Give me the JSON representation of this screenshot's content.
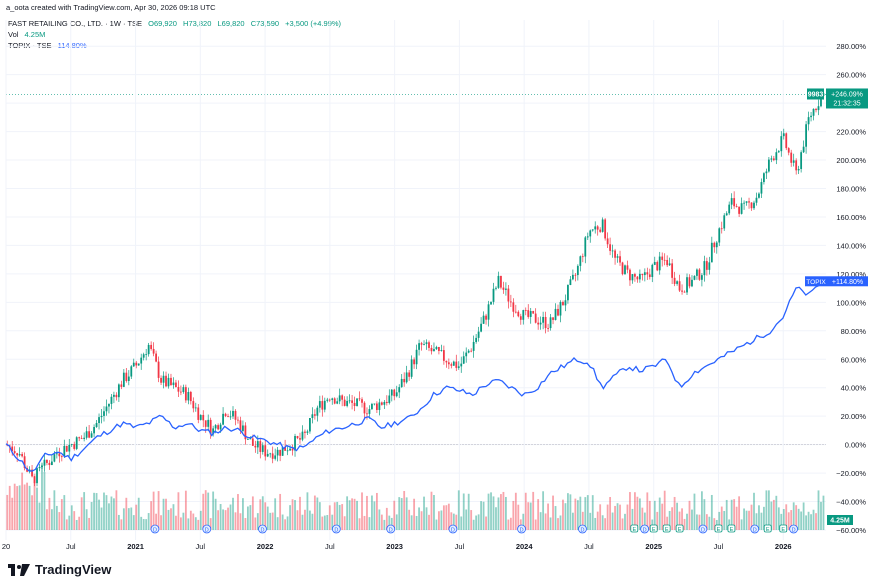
{
  "header": {
    "created_line": "a_oota created with TradingView.com, Apr 30, 2026 09:18 UTC"
  },
  "legend": {
    "symbol": "FAST RETAILING CO., LTD. · 1W · TSE",
    "open": "O69,920",
    "high": "H73,820",
    "low": "L69,820",
    "close": "C73,590",
    "change": "+3,500 (+4.99%)",
    "vol_label": "Vol",
    "vol_value": "4.25M",
    "compare_label": "TOPIX · TSE",
    "compare_value": "114.80%"
  },
  "badges": {
    "symbol_tag": "9983",
    "symbol_pct": "+246.09%",
    "countdown": "21:32:35",
    "topix_tag": "TOPIX",
    "topix_pct": "+114.80%",
    "vol_tag": "4.25M"
  },
  "colors": {
    "up": "#089981",
    "down": "#f23645",
    "compare": "#2962ff",
    "grid": "#f0f3fa"
  },
  "footer": {
    "brand": "TradingView",
    "logo_icon": "tradingview-logo-icon"
  },
  "chart_data": {
    "type": "line",
    "title": "",
    "xlabel": "",
    "ylabel": "",
    "y_unit": "%",
    "ylim": [
      -60,
      290
    ],
    "yticks": [
      "280.00%",
      "260.00%",
      "240.00%",
      "220.00%",
      "200.00%",
      "180.00%",
      "160.00%",
      "140.00%",
      "120.00%",
      "100.00%",
      "80.00%",
      "60.00%",
      "40.00%",
      "20.00%",
      "0.00%",
      "−20.00%",
      "−40.00%",
      "−60.00%"
    ],
    "ytick_values": [
      280,
      260,
      240,
      220,
      200,
      180,
      160,
      140,
      120,
      100,
      80,
      60,
      40,
      20,
      0,
      -20,
      -40,
      -60
    ],
    "xticks": [
      "20",
      "Jul",
      "2021",
      "Jul",
      "2022",
      "Jul",
      "2023",
      "Jul",
      "2024",
      "Jul",
      "2025",
      "Jul",
      "2026"
    ],
    "xtick_years": [
      2020.0,
      2020.5,
      2021.0,
      2021.5,
      2022.0,
      2022.5,
      2023.0,
      2023.5,
      2024.0,
      2024.5,
      2025.0,
      2025.5,
      2026.0
    ],
    "x_range": [
      2020.0,
      2026.33
    ],
    "grid": true,
    "series": [
      {
        "name": "FAST RETAILING CO., LTD.",
        "style": "candlestick",
        "x": [
          2020.0,
          2020.1,
          2020.2,
          2020.3,
          2020.4,
          2020.5,
          2020.6,
          2020.7,
          2020.8,
          2020.9,
          2021.0,
          2021.1,
          2021.2,
          2021.3,
          2021.4,
          2021.5,
          2021.6,
          2021.7,
          2021.8,
          2021.9,
          2022.0,
          2022.1,
          2022.2,
          2022.3,
          2022.4,
          2022.5,
          2022.6,
          2022.7,
          2022.8,
          2022.9,
          2023.0,
          2023.1,
          2023.2,
          2023.3,
          2023.4,
          2023.5,
          2023.6,
          2023.7,
          2023.8,
          2023.9,
          2024.0,
          2024.1,
          2024.2,
          2024.3,
          2024.4,
          2024.5,
          2024.6,
          2024.7,
          2024.8,
          2024.9,
          2025.0,
          2025.1,
          2025.2,
          2025.3,
          2025.4,
          2025.5,
          2025.6,
          2025.7,
          2025.8,
          2025.9,
          2026.0,
          2026.1,
          2026.2,
          2026.3
        ],
        "values": [
          0,
          -5,
          -25,
          -15,
          -5,
          0,
          5,
          15,
          30,
          45,
          55,
          70,
          45,
          40,
          35,
          20,
          10,
          25,
          15,
          0,
          -5,
          -5,
          0,
          5,
          25,
          35,
          30,
          28,
          25,
          30,
          35,
          50,
          70,
          65,
          60,
          55,
          70,
          90,
          115,
          100,
          90,
          88,
          85,
          100,
          120,
          150,
          155,
          130,
          120,
          115,
          125,
          130,
          110,
          115,
          125,
          150,
          170,
          165,
          175,
          200,
          215,
          190,
          230,
          246.09
        ]
      },
      {
        "name": "TOPIX · TSE",
        "style": "line",
        "x": [
          2020.0,
          2020.1,
          2020.2,
          2020.3,
          2020.4,
          2020.5,
          2020.6,
          2020.7,
          2020.8,
          2020.9,
          2021.0,
          2021.1,
          2021.2,
          2021.3,
          2021.4,
          2021.5,
          2021.6,
          2021.7,
          2021.8,
          2021.9,
          2022.0,
          2022.1,
          2022.2,
          2022.3,
          2022.4,
          2022.5,
          2022.6,
          2022.7,
          2022.8,
          2022.9,
          2023.0,
          2023.1,
          2023.2,
          2023.3,
          2023.4,
          2023.5,
          2023.6,
          2023.7,
          2023.8,
          2023.9,
          2024.0,
          2024.1,
          2024.2,
          2024.3,
          2024.4,
          2024.5,
          2024.6,
          2024.7,
          2024.8,
          2024.9,
          2025.0,
          2025.1,
          2025.2,
          2025.3,
          2025.4,
          2025.5,
          2025.6,
          2025.7,
          2025.8,
          2025.9,
          2026.0,
          2026.1,
          2026.2,
          2026.3
        ],
        "values": [
          0,
          -10,
          -20,
          -8,
          -5,
          -10,
          -3,
          5,
          10,
          15,
          12,
          15,
          20,
          12,
          15,
          10,
          8,
          12,
          10,
          5,
          3,
          0,
          -3,
          -2,
          5,
          10,
          12,
          15,
          18,
          12,
          15,
          18,
          25,
          35,
          40,
          38,
          35,
          42,
          45,
          40,
          35,
          40,
          50,
          55,
          60,
          58,
          40,
          48,
          55,
          52,
          55,
          60,
          40,
          50,
          55,
          60,
          65,
          70,
          75,
          80,
          90,
          110,
          105,
          114.8
        ]
      }
    ],
    "volume_unit": "M",
    "volume_last": 4.25
  }
}
